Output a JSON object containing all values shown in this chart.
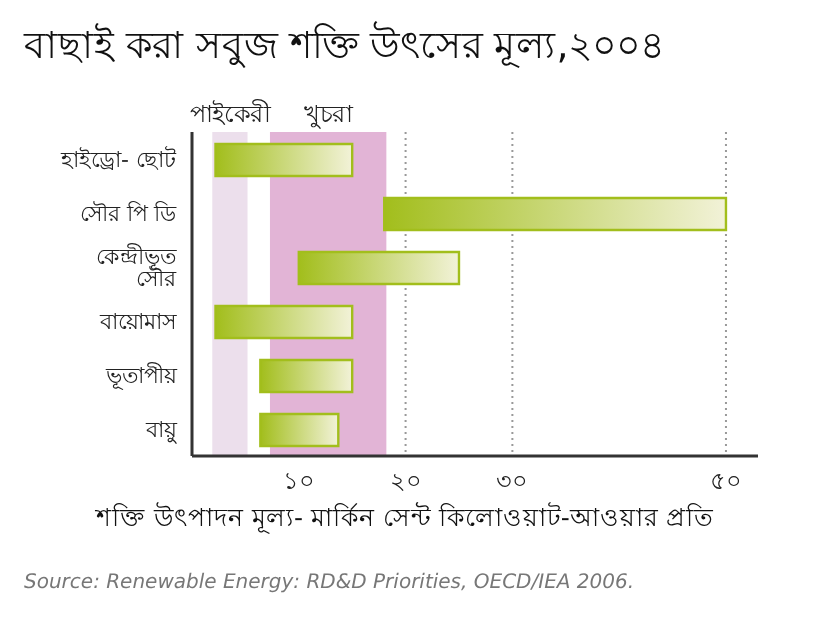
{
  "chart_data": {
    "type": "bar",
    "orientation": "horizontal",
    "title": "বাছাই করা সবুজ শক্তি উৎসের মূল্য,২০০৪",
    "xlabel": "শক্তি উৎপাদন মূল্য- মার্কিন সেন্ট কিলোওয়াট-আওয়ার প্রতি",
    "categories": [
      "হাইড্রো- ছোট",
      "সৌর পি ডি",
      "কেন্দ্রীভূত সৌর",
      "বায়োমাস",
      "ভূতাপীয়",
      "বায়ু"
    ],
    "series": [
      {
        "color": "#a2be1c",
        "base": [
          2.2,
          18,
          10,
          2.2,
          6.4,
          6.4
        ],
        "values": [
          12.8,
          32,
          15,
          12.8,
          8.6,
          7.3
        ]
      }
    ],
    "xlim": [
      0,
      53
    ],
    "xticks": [
      {
        "value": 10,
        "label": "১০"
      },
      {
        "value": 20,
        "label": "২০"
      },
      {
        "value": 30,
        "label": "৩০"
      },
      {
        "value": 50,
        "label": "৫০"
      }
    ],
    "grid": "x",
    "bands": [
      {
        "axis": "x",
        "from": 1.9,
        "to": 5.2,
        "label": "পাইকেরী",
        "color": "#ecdfec"
      },
      {
        "axis": "x",
        "from": 7.3,
        "to": 18.2,
        "label": "খুচরা",
        "color": "#e2b4d6"
      }
    ],
    "annotations": [
      "Source: Renewable Energy: RD&D Priorities, OECD/IEA 2006."
    ]
  }
}
